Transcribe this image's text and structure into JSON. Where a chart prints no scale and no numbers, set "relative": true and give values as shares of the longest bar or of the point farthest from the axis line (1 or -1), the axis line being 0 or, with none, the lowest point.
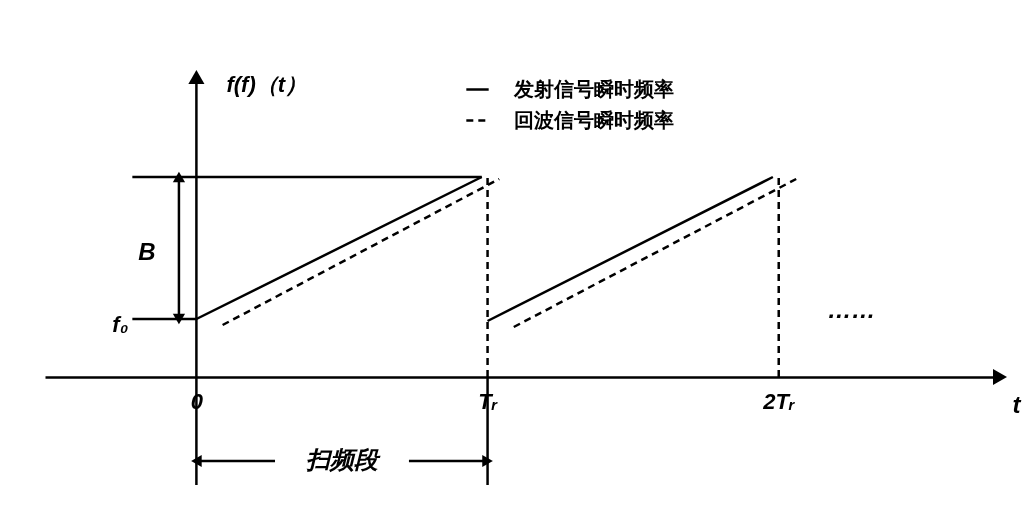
{
  "chart_data": {
    "type": "line",
    "relative": true,
    "ylabel": "f(f)（t）",
    "xlabel": "t",
    "legend": "top",
    "marker": "none",
    "xlim": [
      -0.52,
      2.76
    ],
    "xticks": [
      0,
      {
        "value": 1,
        "label": "Tᵣ"
      },
      {
        "value": 2,
        "label": "2Tᵣ"
      }
    ],
    "series": [
      {
        "name": "发射信号瞬时频率",
        "color": "#000000",
        "line_style": "solid",
        "x": [
          0,
          0.98,
          0.99,
          1,
          1.98
        ],
        "values": [
          0.29,
          1,
          null,
          0.28,
          1
        ]
      },
      {
        "name": "回波信号瞬时频率",
        "color": "#000000",
        "line_style": "dashed",
        "x": [
          0.09,
          1.04,
          1.05,
          1.09,
          2.06
        ],
        "values": [
          0.26,
          0.99,
          null,
          0.25,
          0.99
        ]
      }
    ],
    "ref_lines": [
      {
        "axis": "y",
        "value": 0.29,
        "label": "f₀"
      },
      {
        "axis": "y",
        "value": 1
      },
      {
        "axis": "x",
        "value": 1,
        "line_style": "dashed"
      },
      {
        "axis": "x",
        "value": 2,
        "line_style": "dashed"
      }
    ],
    "annotations": [
      "B",
      "扫频段",
      "……"
    ]
  }
}
